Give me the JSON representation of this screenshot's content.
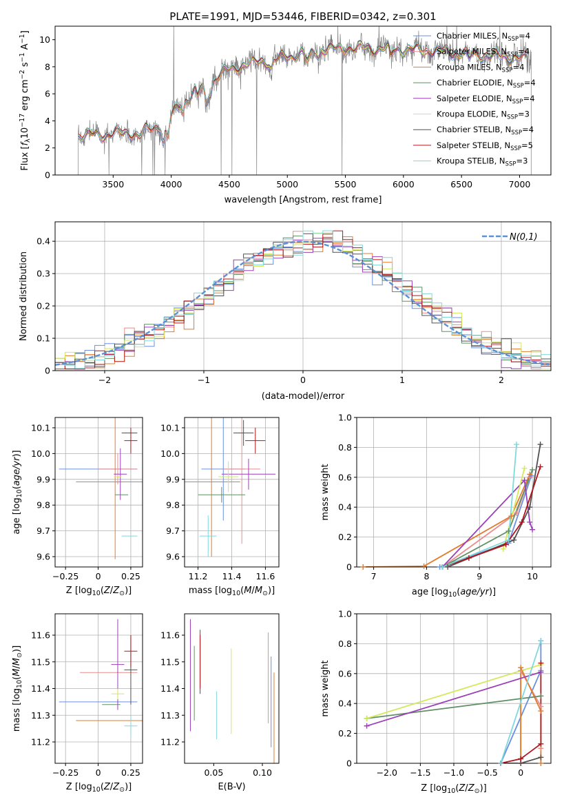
{
  "figure": {
    "title": "PLATE=1991, MJD=53446, FIBERID=0342, z=0.301"
  },
  "models": [
    {
      "name": "Chabrier MILES",
      "nssp": 4,
      "color": "#6a8fe0"
    },
    {
      "name": "Salpeter MILES",
      "nssp": 4,
      "color": "#e88c8c"
    },
    {
      "name": "Kroupa MILES",
      "nssp": 4,
      "color": "#e07b2c"
    },
    {
      "name": "Chabrier ELODIE",
      "nssp": 4,
      "color": "#5f8f64"
    },
    {
      "name": "Salpeter ELODIE",
      "nssp": 4,
      "color": "#9b3fb8"
    },
    {
      "name": "Kroupa ELODIE",
      "nssp": 3,
      "color": "#d4e85a"
    },
    {
      "name": "Chabrier STELIB",
      "nssp": 4,
      "color": "#505050"
    },
    {
      "name": "Salpeter STELIB",
      "nssp": 5,
      "color": "#b0151b"
    },
    {
      "name": "Kroupa STELIB",
      "nssp": 3,
      "color": "#7fd8dc"
    }
  ],
  "legend_nssp_prefix": "N",
  "legend_nssp_sub": "SSP",
  "chart_data": [
    {
      "id": "spectrum",
      "type": "line",
      "xlabel": "wavelength [Angstrom, rest frame]",
      "ylabel": "Flux [f_λ10^-17 erg cm^-2 s^-1 A^-1]",
      "xlim": [
        3000,
        7270
      ],
      "ylim": [
        0,
        11
      ],
      "xticks": [
        3500,
        4000,
        4500,
        5000,
        5500,
        6000,
        6500,
        7000
      ],
      "yticks": [
        0,
        2,
        4,
        6,
        8,
        10
      ],
      "data_color": "#808080",
      "data_range": [
        3200,
        7100
      ],
      "legend": "top-right",
      "continuum": [
        [
          3200,
          2.9
        ],
        [
          3450,
          3.0
        ],
        [
          3600,
          3.1
        ],
        [
          3800,
          3.3
        ],
        [
          3950,
          3.9
        ],
        [
          4050,
          4.9
        ],
        [
          4200,
          6.2
        ],
        [
          4300,
          6.4
        ],
        [
          4400,
          7.3
        ],
        [
          4500,
          7.8
        ],
        [
          4700,
          8.3
        ],
        [
          4900,
          8.5
        ],
        [
          5100,
          9.0
        ],
        [
          5300,
          9.3
        ],
        [
          5600,
          9.4
        ],
        [
          5900,
          9.3
        ],
        [
          6200,
          9.2
        ],
        [
          6500,
          9.0
        ],
        [
          6800,
          8.8
        ],
        [
          7050,
          8.6
        ]
      ]
    },
    {
      "id": "residuals",
      "type": "area",
      "xlabel": "(data-model)/error",
      "ylabel": "Normed distribution",
      "xlim": [
        -2.5,
        2.5
      ],
      "ylim": [
        0,
        0.46
      ],
      "xticks": [
        -2,
        -1,
        0,
        1,
        2
      ],
      "yticks": [
        0.0,
        0.1,
        0.2,
        0.3,
        0.4
      ],
      "grid": true,
      "reference_label": "N(0,1)",
      "reference_mean": 0,
      "reference_sigma": 1,
      "reference_color": "#5b8fd6",
      "bin_width": 0.1,
      "legend": "top-right"
    },
    {
      "id": "age-vs-Z",
      "type": "scatter",
      "xlabel": "Z [log10(Z/Z⊙)]",
      "ylabel": "age [log10(age/yr)]",
      "xlim": [
        -0.33,
        0.34
      ],
      "ylim": [
        9.56,
        10.14
      ],
      "xticks": [
        -0.25,
        0.0,
        0.25
      ],
      "yticks": [
        9.6,
        9.7,
        9.8,
        9.9,
        10.0,
        10.1
      ],
      "grid": true,
      "points": [
        {
          "x": 0.0,
          "xerr": 0.3,
          "y": 9.94,
          "yerr": 0.0
        },
        {
          "x": 0.15,
          "xerr": 0.15,
          "y": 9.94,
          "yerr": 0.06
        },
        {
          "x": 0.13,
          "xerr": 0.3,
          "y": 9.89,
          "yerr": 0.3
        },
        {
          "x": 0.18,
          "xerr": 0.05,
          "y": 9.84,
          "yerr": 0.0
        },
        {
          "x": 0.17,
          "xerr": 0.05,
          "y": 9.92,
          "yerr": 0.1
        },
        {
          "x": 0.15,
          "xerr": 0.03,
          "y": 9.91,
          "yerr": 0.0
        },
        {
          "x": 0.24,
          "xerr": 0.06,
          "y": 10.08,
          "yerr": 0.0
        },
        {
          "x": 0.25,
          "xerr": 0.05,
          "y": 10.05,
          "yerr": 0.05
        },
        {
          "x": 0.24,
          "xerr": 0.06,
          "y": 9.68,
          "yerr": 0.0
        }
      ]
    },
    {
      "id": "age-vs-mass",
      "type": "scatter",
      "xlabel": "mass [log10(M/M⊙)]",
      "ylabel": "",
      "xlim": [
        11.12,
        11.68
      ],
      "ylim": [
        9.56,
        10.14
      ],
      "xticks": [
        11.2,
        11.4,
        11.6
      ],
      "yticks": [
        9.6,
        9.7,
        9.8,
        9.9,
        10.0,
        10.1
      ],
      "grid": true,
      "points": [
        {
          "x": 11.35,
          "xerr": 0.13,
          "y": 9.94,
          "yerr": 0.2
        },
        {
          "x": 11.46,
          "xerr": 0.11,
          "y": 9.94,
          "yerr": 0.29
        },
        {
          "x": 11.28,
          "xerr": 0.17,
          "y": 9.89,
          "yerr": 0.29
        },
        {
          "x": 11.34,
          "xerr": 0.14,
          "y": 9.84,
          "yerr": 0.03
        },
        {
          "x": 11.5,
          "xerr": 0.16,
          "y": 9.92,
          "yerr": 0.06
        },
        {
          "x": 11.38,
          "xerr": 0.06,
          "y": 9.91,
          "yerr": 0.06
        },
        {
          "x": 11.47,
          "xerr": 0.06,
          "y": 10.08,
          "yerr": 0.05
        },
        {
          "x": 11.54,
          "xerr": 0.06,
          "y": 10.05,
          "yerr": 0.05
        },
        {
          "x": 11.26,
          "xerr": 0.05,
          "y": 9.68,
          "yerr": 0.08
        }
      ]
    },
    {
      "id": "weight-vs-age",
      "type": "line",
      "xlabel": "age [log10(age/yr)]",
      "ylabel": "mass weight",
      "xlim": [
        6.68,
        10.35
      ],
      "ylim": [
        0,
        1
      ],
      "xticks": [
        7,
        8,
        9,
        10
      ],
      "yticks": [
        0.0,
        0.2,
        0.4,
        0.6,
        0.8,
        1.0
      ],
      "grid": true,
      "series": [
        {
          "x": [
            8.25,
            9.55,
            9.98
          ],
          "y": [
            0.0,
            0.16,
            0.61
          ]
        },
        {
          "x": [
            8.3,
            9.7,
            9.95
          ],
          "y": [
            0.0,
            0.36,
            0.6
          ]
        },
        {
          "x": [
            6.8,
            7.95,
            9.6,
            9.95
          ],
          "y": [
            0.0,
            0.005,
            0.34,
            0.62
          ]
        },
        {
          "x": [
            8.3,
            9.55,
            10.0
          ],
          "y": [
            0.0,
            0.24,
            0.65
          ]
        },
        {
          "x": [
            8.3,
            9.85,
            9.95,
            10.0
          ],
          "y": [
            0.0,
            0.58,
            0.3,
            0.25
          ]
        },
        {
          "x": [
            9.45,
            9.85
          ],
          "y": [
            0.12,
            0.66
          ]
        },
        {
          "x": [
            8.4,
            9.65,
            9.95,
            10.15
          ],
          "y": [
            0.0,
            0.18,
            0.4,
            0.82
          ]
        },
        {
          "x": [
            8.3,
            8.8,
            9.5,
            9.8,
            10.15
          ],
          "y": [
            0.0,
            0.06,
            0.15,
            0.3,
            0.67
          ]
        },
        {
          "x": [
            8.3,
            9.55,
            9.7
          ],
          "y": [
            0.0,
            0.18,
            0.82
          ]
        }
      ]
    },
    {
      "id": "mass-vs-Z",
      "type": "scatter",
      "xlabel": "Z [log10(Z/Z⊙)]",
      "ylabel": "mass [log10(M/M⊙)]",
      "xlim": [
        -0.33,
        0.34
      ],
      "ylim": [
        11.12,
        11.68
      ],
      "xticks": [
        -0.25,
        0.0,
        0.25
      ],
      "yticks": [
        11.2,
        11.3,
        11.4,
        11.5,
        11.6
      ],
      "grid": true,
      "points": [
        {
          "x": 0.0,
          "xerr": 0.3,
          "y": 11.35,
          "yerr": 0.0
        },
        {
          "x": 0.08,
          "xerr": 0.22,
          "y": 11.46,
          "yerr": 0.0
        },
        {
          "x": 0.13,
          "xerr": 0.3,
          "y": 11.28,
          "yerr": 0.0
        },
        {
          "x": 0.1,
          "xerr": 0.07,
          "y": 11.34,
          "yerr": 0.0
        },
        {
          "x": 0.15,
          "xerr": 0.05,
          "y": 11.49,
          "yerr": 0.17
        },
        {
          "x": 0.15,
          "xerr": 0.05,
          "y": 11.38,
          "yerr": 0.02
        },
        {
          "x": 0.25,
          "xerr": 0.05,
          "y": 11.47,
          "yerr": 0.13
        },
        {
          "x": 0.25,
          "xerr": 0.05,
          "y": 11.54,
          "yerr": 0.06
        },
        {
          "x": 0.25,
          "xerr": 0.05,
          "y": 11.26,
          "yerr": 0.04
        }
      ]
    },
    {
      "id": "mass-vs-ebv",
      "type": "scatter",
      "xlabel": "E(B-V)",
      "ylabel": "",
      "xlim": [
        0.02,
        0.117
      ],
      "ylim": [
        11.12,
        11.68
      ],
      "xticks": [
        0.05,
        0.1
      ],
      "yticks": [
        11.2,
        11.3,
        11.4,
        11.5,
        11.6
      ],
      "grid": false,
      "points": [
        {
          "x": 0.109,
          "xerr": 0.0,
          "y": 11.35,
          "yerr": 0.17
        },
        {
          "x": 0.106,
          "xerr": 0.0,
          "y": 11.44,
          "yerr": 0.17
        },
        {
          "x": 0.112,
          "xerr": 0.0,
          "y": 11.28,
          "yerr": 0.18
        },
        {
          "x": 0.03,
          "xerr": 0.0,
          "y": 11.42,
          "yerr": 0.14
        },
        {
          "x": 0.026,
          "xerr": 0.0,
          "y": 11.45,
          "yerr": 0.21
        },
        {
          "x": 0.068,
          "xerr": 0.0,
          "y": 11.39,
          "yerr": 0.16
        },
        {
          "x": 0.036,
          "xerr": 0.0,
          "y": 11.5,
          "yerr": 0.12
        },
        {
          "x": 0.036,
          "xerr": 0.0,
          "y": 11.5,
          "yerr": 0.1
        },
        {
          "x": 0.053,
          "xerr": 0.0,
          "y": 11.3,
          "yerr": 0.09
        }
      ]
    },
    {
      "id": "weight-vs-Z",
      "type": "line",
      "xlabel": "Z [log10(Z/Z⊙)]",
      "ylabel": "mass weight",
      "xlim": [
        -2.45,
        0.45
      ],
      "ylim": [
        0,
        1
      ],
      "xticks": [
        -2.0,
        -1.5,
        -1.0,
        -0.5,
        0.0
      ],
      "yticks": [
        0.0,
        0.2,
        0.4,
        0.6,
        0.8,
        1.0
      ],
      "grid": true,
      "series": [
        {
          "x": [
            -0.3,
            0.3,
            0.3
          ],
          "y": [
            0.0,
            0.62,
            0.82
          ]
        },
        {
          "x": [
            0.0,
            0.0,
            0.3,
            0.3
          ],
          "y": [
            0.0,
            0.62,
            0.38,
            0.1
          ]
        },
        {
          "x": [
            0.0,
            0.0,
            0.3,
            0.3
          ],
          "y": [
            0.0,
            0.64,
            0.35,
            0.0
          ]
        },
        {
          "x": [
            -2.3,
            0.3
          ],
          "y": [
            0.3,
            0.45
          ]
        },
        {
          "x": [
            -2.3,
            0.3
          ],
          "y": [
            0.25,
            0.61
          ]
        },
        {
          "x": [
            -2.3,
            0.3
          ],
          "y": [
            0.3,
            0.66
          ]
        },
        {
          "x": [
            -0.3,
            0.0,
            0.3
          ],
          "y": [
            0.0,
            0.0,
            0.04
          ]
        },
        {
          "x": [
            -0.3,
            0.0,
            0.3,
            0.3
          ],
          "y": [
            0.0,
            0.03,
            0.13,
            0.67
          ]
        },
        {
          "x": [
            -0.3,
            0.3
          ],
          "y": [
            0.0,
            0.82
          ]
        }
      ]
    }
  ]
}
